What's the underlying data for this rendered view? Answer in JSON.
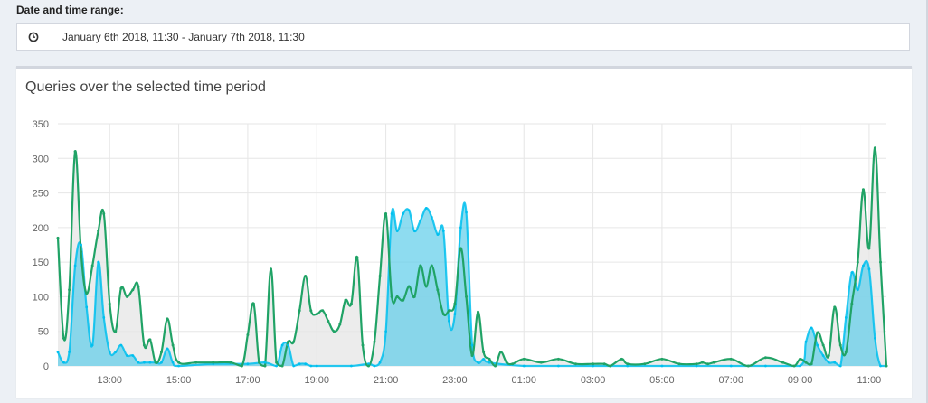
{
  "range": {
    "label": "Date and time range:",
    "value": "January 6th 2018, 11:30 - January 7th 2018, 11:30",
    "icon": "clock-icon"
  },
  "panel": {
    "title": "Queries over the selected time period"
  },
  "colors": {
    "green": "#20a366",
    "blue": "#00c0ef",
    "blue_fill": "#5ecde9",
    "gray_fill": "#e6e6e6"
  },
  "chart_data": {
    "type": "area",
    "title": "Queries over the selected time period",
    "xlabel": "",
    "ylabel": "",
    "xlim": [
      11.5,
      35.5
    ],
    "ylim": [
      0,
      350
    ],
    "yticks": [
      0,
      50,
      100,
      150,
      200,
      250,
      300,
      350
    ],
    "xticks": [
      {
        "x": 13,
        "label": "13:00"
      },
      {
        "x": 15,
        "label": "15:00"
      },
      {
        "x": 17,
        "label": "17:00"
      },
      {
        "x": 19,
        "label": "19:00"
      },
      {
        "x": 21,
        "label": "21:00"
      },
      {
        "x": 23,
        "label": "23:00"
      },
      {
        "x": 25,
        "label": "01:00"
      },
      {
        "x": 27,
        "label": "03:00"
      },
      {
        "x": 29,
        "label": "05:00"
      },
      {
        "x": 31,
        "label": "07:00"
      },
      {
        "x": 33,
        "label": "09:00"
      },
      {
        "x": 35,
        "label": "11:00"
      }
    ],
    "grid": true,
    "series": [
      {
        "color": "#20a366",
        "x": [
          11.5,
          11.67,
          11.83,
          12.0,
          12.17,
          12.33,
          12.5,
          12.67,
          12.83,
          13.0,
          13.17,
          13.33,
          13.5,
          13.67,
          13.83,
          14.0,
          14.17,
          14.33,
          14.5,
          14.67,
          14.83,
          15.0,
          15.5,
          16.0,
          16.5,
          16.83,
          17.0,
          17.17,
          17.33,
          17.5,
          17.67,
          17.83,
          18.0,
          18.17,
          18.33,
          18.5,
          18.67,
          18.83,
          19.0,
          19.17,
          19.33,
          19.5,
          19.67,
          19.83,
          20.0,
          20.17,
          20.33,
          20.5,
          20.67,
          20.83,
          21.0,
          21.17,
          21.33,
          21.5,
          21.67,
          21.83,
          22.0,
          22.17,
          22.33,
          22.5,
          22.67,
          22.83,
          23.0,
          23.17,
          23.33,
          23.5,
          23.67,
          23.83,
          24.0,
          24.17,
          24.33,
          24.5,
          24.67,
          25.0,
          25.5,
          26.0,
          26.5,
          27.0,
          27.33,
          27.5,
          27.83,
          28.0,
          28.5,
          29.0,
          29.5,
          30.0,
          30.17,
          30.33,
          30.5,
          31.0,
          31.5,
          32.0,
          32.5,
          32.83,
          33.0,
          33.17,
          33.33,
          33.5,
          33.67,
          33.83,
          34.0,
          34.17,
          34.33,
          34.5,
          34.67,
          34.83,
          35.0,
          35.17,
          35.33,
          35.5
        ],
        "values": [
          185,
          40,
          110,
          310,
          165,
          105,
          145,
          195,
          220,
          90,
          50,
          112,
          100,
          110,
          115,
          30,
          38,
          5,
          20,
          68,
          30,
          5,
          5,
          5,
          5,
          0,
          45,
          90,
          5,
          0,
          140,
          5,
          0,
          35,
          35,
          80,
          130,
          80,
          75,
          80,
          65,
          50,
          60,
          95,
          90,
          157,
          30,
          0,
          35,
          130,
          220,
          100,
          100,
          95,
          115,
          100,
          145,
          115,
          145,
          110,
          75,
          80,
          90,
          170,
          100,
          15,
          78,
          20,
          10,
          0,
          20,
          5,
          3,
          10,
          5,
          10,
          3,
          3,
          3,
          0,
          10,
          3,
          3,
          10,
          3,
          3,
          5,
          3,
          5,
          10,
          0,
          12,
          5,
          0,
          10,
          5,
          3,
          48,
          30,
          15,
          85,
          30,
          20,
          90,
          150,
          255,
          170,
          315,
          150,
          0
        ]
      },
      {
        "color": "#00c0ef",
        "x": [
          11.5,
          11.67,
          11.83,
          12.0,
          12.17,
          12.33,
          12.5,
          12.67,
          12.83,
          13.0,
          13.17,
          13.33,
          13.5,
          13.67,
          13.83,
          14.0,
          14.17,
          14.33,
          14.5,
          14.67,
          14.83,
          15.0,
          16.0,
          17.0,
          17.5,
          17.83,
          18.0,
          18.17,
          18.33,
          18.5,
          18.67,
          18.83,
          19.0,
          20.0,
          20.5,
          20.67,
          20.83,
          21.0,
          21.17,
          21.33,
          21.5,
          21.67,
          21.83,
          22.0,
          22.17,
          22.33,
          22.5,
          22.67,
          22.83,
          23.0,
          23.17,
          23.33,
          23.5,
          23.67,
          23.83,
          24.0,
          25.0,
          26.0,
          27.0,
          28.0,
          29.0,
          30.0,
          31.0,
          32.0,
          33.0,
          33.17,
          33.33,
          33.5,
          33.67,
          33.83,
          34.0,
          34.17,
          34.33,
          34.5,
          34.67,
          34.83,
          35.0,
          35.17,
          35.33,
          35.5
        ],
        "values": [
          20,
          5,
          20,
          145,
          175,
          85,
          30,
          150,
          70,
          20,
          20,
          30,
          15,
          15,
          5,
          5,
          5,
          5,
          5,
          25,
          5,
          0,
          3,
          3,
          5,
          0,
          30,
          30,
          0,
          3,
          3,
          0,
          0,
          0,
          3,
          0,
          5,
          50,
          220,
          195,
          220,
          225,
          195,
          210,
          228,
          215,
          190,
          195,
          65,
          75,
          200,
          222,
          30,
          5,
          10,
          5,
          0,
          0,
          0,
          0,
          0,
          0,
          0,
          0,
          0,
          35,
          55,
          30,
          15,
          5,
          5,
          0,
          70,
          135,
          110,
          145,
          140,
          40,
          0,
          0
        ]
      }
    ]
  }
}
